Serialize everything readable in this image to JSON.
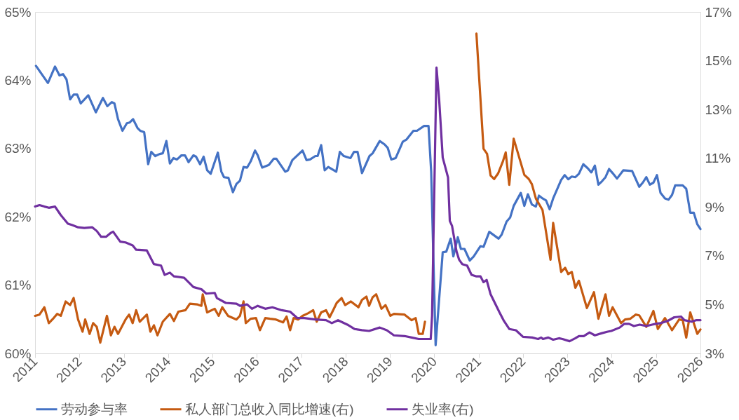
{
  "chart_data": {
    "type": "line",
    "legend": "bottom",
    "line_style": "solid",
    "xlim": [
      2011,
      2026
    ],
    "xticks": [
      2011,
      2012,
      2013,
      2014,
      2015,
      2016,
      2017,
      2018,
      2019,
      2020,
      2021,
      2022,
      2023,
      2024,
      2025,
      2026
    ],
    "ylim": [
      60,
      65
    ],
    "yticks": [
      {
        "value": 60,
        "label": "60%"
      },
      {
        "value": 61,
        "label": "61%"
      },
      {
        "value": 62,
        "label": "62%"
      },
      {
        "value": 63,
        "label": "63%"
      },
      {
        "value": 64,
        "label": "64%"
      },
      {
        "value": 65,
        "label": "65%"
      }
    ],
    "y2lim": [
      3,
      17
    ],
    "y2ticks": [
      {
        "value": 3,
        "label": "3%"
      },
      {
        "value": 5,
        "label": "5%"
      },
      {
        "value": 7,
        "label": "7%"
      },
      {
        "value": 9,
        "label": "9%"
      },
      {
        "value": 11,
        "label": "11%"
      },
      {
        "value": 13,
        "label": "13%"
      },
      {
        "value": 15,
        "label": "15%"
      },
      {
        "value": 17,
        "label": "17%"
      }
    ],
    "series": [
      {
        "name": "劳动参与率",
        "color": "#4472c4",
        "axis": "y",
        "x": [
          2011.02,
          2011.29,
          2011.45,
          2011.55,
          2011.63,
          2011.71,
          2011.79,
          2011.87,
          2011.95,
          2012.03,
          2012.2,
          2012.37,
          2012.53,
          2012.63,
          2012.73,
          2012.79,
          2012.87,
          2012.97,
          2013.07,
          2013.13,
          2013.21,
          2013.31,
          2013.37,
          2013.46,
          2013.55,
          2013.62,
          2013.71,
          2013.81,
          2013.88,
          2013.96,
          2014.04,
          2014.12,
          2014.2,
          2014.3,
          2014.38,
          2014.46,
          2014.57,
          2014.63,
          2014.72,
          2014.8,
          2014.88,
          2014.96,
          2015.12,
          2015.2,
          2015.26,
          2015.36,
          2015.46,
          2015.54,
          2015.62,
          2015.7,
          2015.78,
          2015.86,
          2015.96,
          2016.02,
          2016.12,
          2016.27,
          2016.38,
          2016.44,
          2016.64,
          2016.7,
          2016.8,
          2017.03,
          2017.12,
          2017.2,
          2017.32,
          2017.37,
          2017.45,
          2017.53,
          2017.61,
          2017.79,
          2017.87,
          2017.96,
          2018.11,
          2018.19,
          2018.27,
          2018.37,
          2018.54,
          2018.61,
          2018.77,
          2018.88,
          2018.95,
          2019.03,
          2019.13,
          2019.29,
          2019.37,
          2019.53,
          2019.61,
          2019.77,
          2019.87,
          2019.93,
          2020.03,
          2020.19,
          2020.27,
          2020.37,
          2020.43,
          2020.53,
          2020.6,
          2020.68,
          2020.8,
          2020.89,
          2021.04,
          2021.11,
          2021.24,
          2021.45,
          2021.52,
          2021.63,
          2021.71,
          2021.79,
          2021.95,
          2022.03,
          2022.11,
          2022.2,
          2022.29,
          2022.36,
          2022.44,
          2022.52,
          2022.6,
          2022.68,
          2022.78,
          2022.86,
          2022.94,
          2023.02,
          2023.1,
          2023.18,
          2023.26,
          2023.36,
          2023.46,
          2023.54,
          2023.62,
          2023.7,
          2023.78,
          2023.86,
          2023.94,
          2024.02,
          2024.12,
          2024.26,
          2024.46,
          2024.62,
          2024.7,
          2024.78,
          2024.86,
          2024.94,
          2025.02,
          2025.1,
          2025.2,
          2025.28,
          2025.36,
          2025.43,
          2025.6,
          2025.68,
          2025.77,
          2025.85,
          2025.93,
          2026.0
        ],
        "values": [
          64.21,
          63.96,
          64.2,
          64.07,
          64.09,
          64.01,
          63.72,
          63.79,
          63.79,
          63.66,
          63.78,
          63.53,
          63.74,
          63.62,
          63.68,
          63.66,
          63.43,
          63.26,
          63.37,
          63.38,
          63.43,
          63.3,
          63.26,
          63.24,
          62.77,
          62.95,
          62.89,
          62.92,
          62.93,
          63.11,
          62.78,
          62.86,
          62.84,
          62.9,
          62.9,
          62.8,
          62.9,
          62.88,
          62.77,
          62.88,
          62.68,
          62.63,
          62.94,
          62.66,
          62.58,
          62.57,
          62.36,
          62.48,
          62.53,
          62.73,
          62.72,
          62.81,
          62.97,
          62.9,
          62.72,
          62.76,
          62.85,
          62.85,
          62.66,
          62.68,
          62.83,
          62.97,
          62.83,
          62.84,
          62.89,
          62.89,
          63.05,
          62.68,
          62.73,
          62.66,
          62.95,
          62.89,
          62.86,
          62.95,
          62.95,
          62.64,
          62.89,
          62.93,
          63.11,
          63.06,
          63.01,
          62.84,
          62.86,
          63.1,
          63.13,
          63.26,
          63.26,
          63.33,
          63.33,
          62.66,
          60.12,
          61.48,
          61.49,
          61.68,
          61.42,
          61.7,
          61.53,
          61.53,
          61.36,
          61.42,
          61.57,
          61.56,
          61.78,
          61.68,
          61.74,
          61.93,
          61.99,
          62.16,
          62.35,
          62.16,
          62.33,
          62.18,
          62.15,
          62.31,
          62.27,
          62.24,
          62.11,
          62.27,
          62.42,
          62.54,
          62.61,
          62.55,
          62.59,
          62.58,
          62.63,
          62.77,
          62.71,
          62.65,
          62.75,
          62.47,
          62.52,
          62.58,
          62.7,
          62.64,
          62.56,
          62.68,
          62.67,
          62.44,
          62.5,
          62.58,
          62.47,
          62.5,
          62.61,
          62.35,
          62.27,
          62.25,
          62.32,
          62.46,
          62.46,
          62.41,
          62.06,
          62.06,
          61.89,
          61.82
        ]
      },
      {
        "name": "私人部门总收入同比增速(右)",
        "color": "#c55a11",
        "axis": "y2",
        "x": [
          2011.0,
          2011.1,
          2011.21,
          2011.31,
          2011.42,
          2011.5,
          2011.58,
          2011.69,
          2011.79,
          2011.87,
          2011.97,
          2012.07,
          2012.13,
          2012.23,
          2012.31,
          2012.39,
          2012.47,
          2012.62,
          2012.71,
          2012.79,
          2012.87,
          2013.04,
          2013.12,
          2013.2,
          2013.28,
          2013.36,
          2013.52,
          2013.6,
          2013.68,
          2013.76,
          2013.88,
          2014.04,
          2014.13,
          2014.23,
          2014.39,
          2014.49,
          2014.65,
          2014.75,
          2014.78,
          2014.88,
          2015.05,
          2015.14,
          2015.22,
          2015.35,
          2015.46,
          2015.54,
          2015.62,
          2015.7,
          2015.75,
          2015.86,
          2015.98,
          2016.07,
          2016.19,
          2016.3,
          2016.43,
          2016.59,
          2016.67,
          2016.75,
          2016.83,
          2016.93,
          2017.03,
          2017.16,
          2017.27,
          2017.35,
          2017.45,
          2017.56,
          2017.64,
          2017.72,
          2017.8,
          2017.91,
          2017.99,
          2018.12,
          2018.29,
          2018.37,
          2018.47,
          2018.53,
          2018.61,
          2018.69,
          2018.81,
          2018.9,
          2019.01,
          2019.09,
          2019.33,
          2019.49,
          2019.58,
          2019.65,
          2019.74,
          2019.79,
          2020.4,
          2020.95,
          2021.11,
          2021.19,
          2021.27,
          2021.35,
          2021.44,
          2021.55,
          2021.61,
          2021.69,
          2021.79,
          2022.03,
          2022.13,
          2022.2,
          2022.29,
          2022.44,
          2022.62,
          2022.68,
          2022.86,
          2022.95,
          2023.02,
          2023.1,
          2023.18,
          2023.26,
          2023.44,
          2023.6,
          2023.7,
          2023.86,
          2023.94,
          2024.02,
          2024.21,
          2024.3,
          2024.42,
          2024.54,
          2024.62,
          2024.78,
          2024.94,
          2025.04,
          2025.2,
          2025.36,
          2025.52,
          2025.6,
          2025.68,
          2025.77,
          2025.93,
          2026.0
        ],
        "values": [
          4.54,
          4.59,
          4.89,
          4.24,
          4.45,
          4.62,
          4.54,
          5.13,
          4.98,
          5.27,
          4.39,
          3.89,
          4.39,
          3.8,
          4.24,
          4.09,
          3.44,
          4.54,
          3.74,
          4.09,
          3.8,
          4.39,
          4.59,
          4.24,
          4.77,
          4.3,
          4.59,
          3.89,
          4.15,
          3.74,
          4.3,
          4.62,
          4.33,
          4.71,
          4.77,
          5.04,
          5.01,
          4.95,
          5.42,
          4.68,
          4.83,
          4.54,
          4.89,
          4.54,
          4.45,
          4.39,
          4.54,
          5.13,
          4.24,
          4.42,
          4.45,
          3.95,
          4.45,
          4.42,
          4.39,
          4.27,
          4.51,
          3.95,
          4.45,
          4.39,
          4.54,
          4.65,
          4.77,
          4.3,
          4.68,
          4.77,
          4.48,
          4.77,
          5.07,
          5.27,
          4.98,
          5.13,
          4.89,
          5.19,
          5.33,
          4.95,
          5.3,
          5.42,
          4.83,
          4.98,
          4.54,
          4.62,
          4.59,
          4.36,
          4.45,
          3.8,
          3.8,
          4.3,
          null,
          16.11,
          11.39,
          11.18,
          10.29,
          10.15,
          10.38,
          10.89,
          11.24,
          9.91,
          11.8,
          10.32,
          10.15,
          9.94,
          9.35,
          8.88,
          6.84,
          8.35,
          6.34,
          6.51,
          6.25,
          6.34,
          5.69,
          5.98,
          4.86,
          5.51,
          4.42,
          5.42,
          4.54,
          4.89,
          4.24,
          4.39,
          4.42,
          4.59,
          4.56,
          4.09,
          4.74,
          4.0,
          4.45,
          3.95,
          4.39,
          4.36,
          3.65,
          4.68,
          3.8,
          3.98
        ]
      },
      {
        "name": "失业率(右)",
        "color": "#7030a0",
        "axis": "y2",
        "x": [
          2011.0,
          2011.1,
          2011.21,
          2011.31,
          2011.45,
          2011.58,
          2011.74,
          2011.84,
          2011.97,
          2012.11,
          2012.29,
          2012.39,
          2012.49,
          2012.6,
          2012.7,
          2012.76,
          2012.92,
          2013.04,
          2013.2,
          2013.28,
          2013.52,
          2013.68,
          2013.84,
          2013.92,
          2014.04,
          2014.13,
          2014.36,
          2014.57,
          2014.75,
          2014.86,
          2015.05,
          2015.1,
          2015.3,
          2015.54,
          2015.62,
          2015.78,
          2015.89,
          2016.02,
          2016.19,
          2016.35,
          2016.56,
          2016.75,
          2016.91,
          2017.07,
          2017.32,
          2017.56,
          2017.69,
          2017.83,
          2018.04,
          2018.2,
          2018.37,
          2018.53,
          2018.77,
          2018.93,
          2019.09,
          2019.33,
          2019.49,
          2019.65,
          2019.92,
          2019.95,
          2020.05,
          2020.11,
          2020.19,
          2020.31,
          2020.35,
          2020.4,
          2020.5,
          2020.56,
          2020.63,
          2020.74,
          2020.8,
          2020.84,
          2020.94,
          2021.04,
          2021.11,
          2021.18,
          2021.27,
          2021.47,
          2021.57,
          2021.69,
          2021.84,
          2022.0,
          2022.21,
          2022.34,
          2022.41,
          2022.45,
          2022.57,
          2022.68,
          2022.81,
          2022.89,
          2023.05,
          2023.18,
          2023.26,
          2023.37,
          2023.5,
          2023.62,
          2023.78,
          2023.91,
          2023.99,
          2024.18,
          2024.28,
          2024.39,
          2024.5,
          2024.63,
          2024.78,
          2024.91,
          2024.99,
          2025.1,
          2025.26,
          2025.41,
          2025.56,
          2025.64,
          2025.8,
          2025.9,
          2026.0
        ],
        "values": [
          9.02,
          9.08,
          9.02,
          8.97,
          9.02,
          8.67,
          8.32,
          8.26,
          8.17,
          8.14,
          8.17,
          8.02,
          7.78,
          7.78,
          7.93,
          7.99,
          7.58,
          7.55,
          7.43,
          7.25,
          7.22,
          6.66,
          6.6,
          6.22,
          6.31,
          6.16,
          6.1,
          5.72,
          5.63,
          5.45,
          5.48,
          5.27,
          5.07,
          5.04,
          4.95,
          5.01,
          4.83,
          4.95,
          4.83,
          4.89,
          4.77,
          4.71,
          4.45,
          4.45,
          4.39,
          4.36,
          4.24,
          4.36,
          4.18,
          4.0,
          3.95,
          3.92,
          4.06,
          3.95,
          3.74,
          3.71,
          3.65,
          3.59,
          3.59,
          4.54,
          14.72,
          13.4,
          11.03,
          10.21,
          8.43,
          8.23,
          7.19,
          6.84,
          6.66,
          6.6,
          6.37,
          6.22,
          6.16,
          6.16,
          5.92,
          6.01,
          5.42,
          4.68,
          4.33,
          4.0,
          3.95,
          3.68,
          3.65,
          3.59,
          3.65,
          3.59,
          3.65,
          3.56,
          3.62,
          3.59,
          3.5,
          3.62,
          3.71,
          3.71,
          3.86,
          3.74,
          3.83,
          3.89,
          3.92,
          4.06,
          4.21,
          4.21,
          4.12,
          4.18,
          4.12,
          4.18,
          4.21,
          4.24,
          4.33,
          4.48,
          4.51,
          4.36,
          4.3,
          4.36,
          4.36
        ]
      }
    ]
  }
}
